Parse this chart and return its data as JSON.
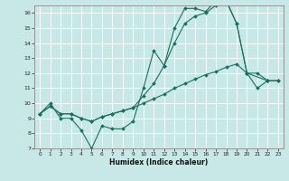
{
  "xlabel": "Humidex (Indice chaleur)",
  "background_color": "#c8e8e8",
  "grid_color": "#b0d8d8",
  "line_color": "#1a7060",
  "xlim": [
    -0.5,
    23.5
  ],
  "ylim": [
    7,
    16.5
  ],
  "yticks": [
    7,
    8,
    9,
    10,
    11,
    12,
    13,
    14,
    15,
    16
  ],
  "xticks": [
    0,
    1,
    2,
    3,
    4,
    5,
    6,
    7,
    8,
    9,
    10,
    11,
    12,
    13,
    14,
    15,
    16,
    17,
    18,
    19,
    20,
    21,
    22,
    23
  ],
  "line1_x": [
    0,
    1,
    2,
    3,
    4,
    5,
    6,
    7,
    8,
    9,
    10,
    11,
    12,
    13,
    14,
    15,
    16,
    17,
    18,
    19,
    20,
    22
  ],
  "line1_y": [
    9.3,
    10.0,
    9.0,
    9.0,
    8.2,
    7.0,
    8.5,
    8.3,
    8.3,
    8.8,
    11.0,
    13.5,
    12.5,
    15.0,
    16.3,
    16.3,
    16.1,
    16.8,
    16.8,
    15.3,
    12.0,
    11.5
  ],
  "line2_x": [
    0,
    1,
    2,
    3,
    4,
    5,
    6,
    7,
    8,
    9,
    10,
    11,
    12,
    13,
    14,
    15,
    16,
    17,
    18,
    19,
    20,
    21,
    22,
    23
  ],
  "line2_y": [
    9.3,
    9.8,
    9.3,
    9.3,
    9.0,
    8.8,
    9.1,
    9.3,
    9.5,
    9.7,
    10.0,
    10.3,
    10.6,
    11.0,
    11.3,
    11.6,
    11.9,
    12.1,
    12.4,
    12.6,
    12.0,
    11.0,
    11.5,
    11.5
  ],
  "line3_x": [
    0,
    1,
    2,
    3,
    4,
    5,
    6,
    7,
    8,
    9,
    10,
    11,
    12,
    13,
    14,
    15,
    16,
    17,
    18,
    19,
    20,
    21,
    22,
    23
  ],
  "line3_y": [
    9.3,
    9.8,
    9.3,
    9.3,
    9.0,
    8.8,
    9.1,
    9.3,
    9.5,
    9.7,
    10.5,
    11.3,
    12.5,
    14.0,
    15.3,
    15.8,
    16.0,
    16.5,
    16.8,
    15.3,
    12.0,
    12.0,
    11.5,
    11.5
  ]
}
